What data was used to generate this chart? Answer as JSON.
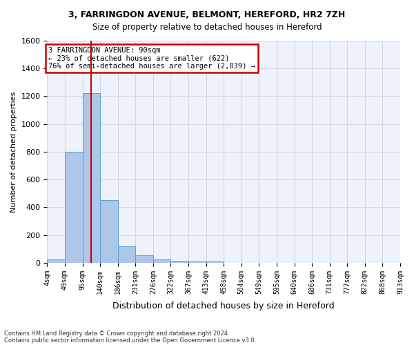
{
  "title1": "3, FARRINGDON AVENUE, BELMONT, HEREFORD, HR2 7ZH",
  "title2": "Size of property relative to detached houses in Hereford",
  "xlabel": "Distribution of detached houses by size in Hereford",
  "ylabel": "Number of detached properties",
  "footer1": "Contains HM Land Registry data © Crown copyright and database right 2024.",
  "footer2": "Contains public sector information licensed under the Open Government Licence v3.0.",
  "bin_labels": [
    "4sqm",
    "49sqm",
    "95sqm",
    "140sqm",
    "186sqm",
    "231sqm",
    "276sqm",
    "322sqm",
    "367sqm",
    "413sqm",
    "458sqm",
    "504sqm",
    "549sqm",
    "595sqm",
    "640sqm",
    "686sqm",
    "731sqm",
    "777sqm",
    "822sqm",
    "868sqm",
    "913sqm"
  ],
  "bar_values": [
    25,
    800,
    1220,
    450,
    120,
    55,
    25,
    15,
    10,
    10,
    0,
    0,
    0,
    0,
    0,
    0,
    0,
    0,
    0,
    0
  ],
  "bar_color": "#aec6e8",
  "bar_edge_color": "#5a9fd4",
  "grid_color": "#d0d8e8",
  "bg_color": "#eef2fa",
  "red_line_index": 2,
  "annotation_text": "3 FARRINGDON AVENUE: 90sqm\n← 23% of detached houses are smaller (622)\n76% of semi-detached houses are larger (2,039) →",
  "annotation_box_color": "#ffffff",
  "annotation_box_edge_color": "#cc0000",
  "ylim": [
    0,
    1600
  ],
  "yticks": [
    0,
    200,
    400,
    600,
    800,
    1000,
    1200,
    1400,
    1600
  ]
}
